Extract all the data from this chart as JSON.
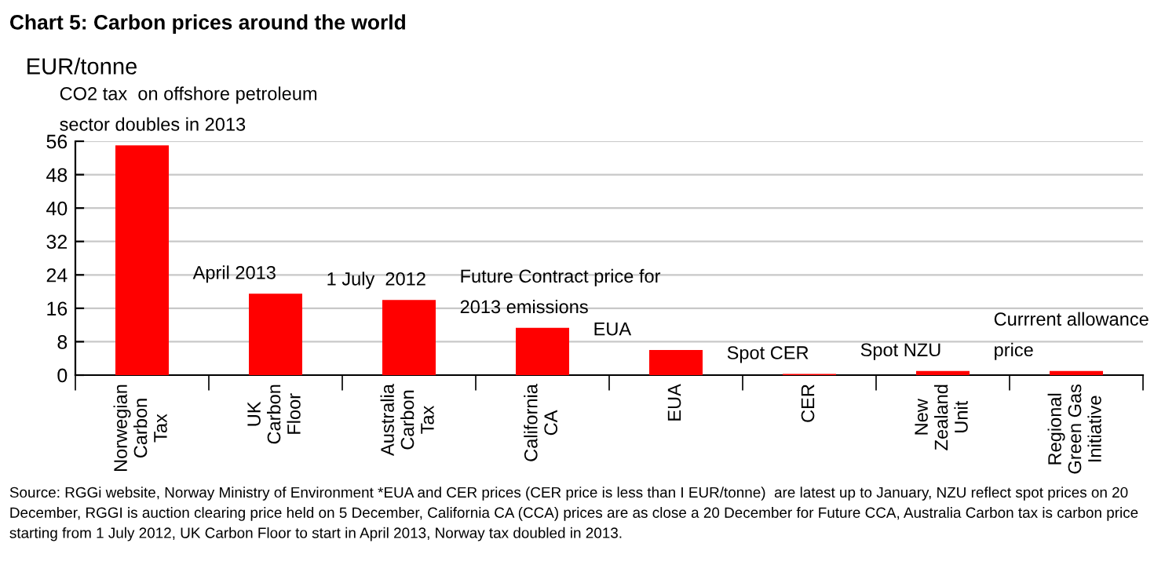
{
  "chart_data": {
    "type": "bar",
    "title": "Chart 5: Carbon prices around the world",
    "ylabel": "EUR/tonne",
    "categories": [
      "Norwegian\nCarbon\nTax",
      "UK\nCarbon\nFloor",
      "Australia\nCarbon\nTax",
      "California\nCA",
      "EUA",
      "CER",
      "New\nZealand\nUnit",
      "Regional\nGreen Gas\nInitiative"
    ],
    "values": [
      55,
      19.5,
      18,
      11.3,
      6,
      0.3,
      1,
      1
    ],
    "color": "#ff0000",
    "ylim": [
      0,
      56
    ],
    "yticks": [
      0,
      8,
      16,
      24,
      32,
      40,
      48,
      56
    ],
    "grid": "y",
    "legend": false,
    "annotations": [
      {
        "text": "CO2 tax  on offshore petroleum\nsector doubles in 2013",
        "x": "Norwegian\nCarbon\nTax",
        "y": 55
      },
      {
        "text": "April 2013",
        "x": "UK\nCarbon\nFloor",
        "y": 19.5
      },
      {
        "text": "1 July  2012",
        "x": "Australia\nCarbon\nTax",
        "y": 18
      },
      {
        "text": "Future Contract price for\n2013 emissions",
        "x": "California\nCA",
        "y": 11.3
      },
      {
        "text": "EUA",
        "x": "EUA",
        "y": 6
      },
      {
        "text": "Spot CER",
        "x": "CER",
        "y": 0.3
      },
      {
        "text": "Spot NZU",
        "x": "New\nZealand\nUnit",
        "y": 1
      },
      {
        "text": "Currrent allowance\nprice",
        "x": "Regional\nGreen Gas\nInitiative",
        "y": 1
      },
      "Source: RGGi website, Norway Ministry of Environment *EUA and CER prices (CER price is less than I EUR/tonne)  are latest up to January, NZU reflect spot prices on 20 December, RGGI is auction clearing price held on 5 December, California CA (CCA) prices are as close a 20 December for Future CCA, Australia Carbon tax is carbon price starting from 1 July 2012, UK Carbon Floor to start in April 2013, Norway tax doubled in 2013."
    ]
  }
}
